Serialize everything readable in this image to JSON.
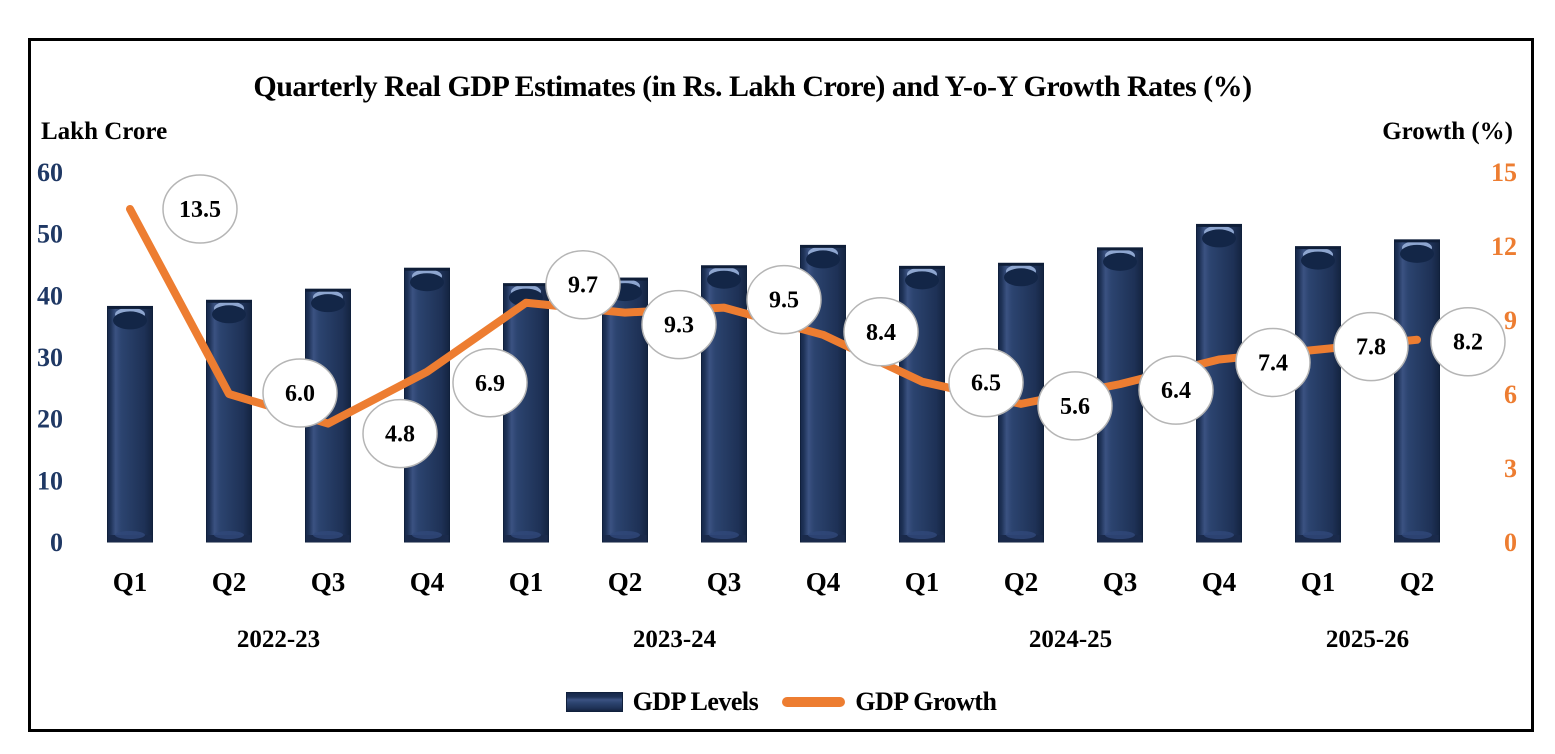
{
  "chart_data": {
    "type": "bar",
    "combo": [
      "bar",
      "line"
    ],
    "title": "Quarterly Real GDP Estimates (in Rs. Lakh Crore) and Y-o-Y Growth Rates (%)",
    "categories": [
      "Q1",
      "Q2",
      "Q3",
      "Q4",
      "Q1",
      "Q2",
      "Q3",
      "Q4",
      "Q1",
      "Q2",
      "Q3",
      "Q4",
      "Q1",
      "Q2"
    ],
    "year_groups": [
      {
        "label": "2022-23",
        "from": 0,
        "to": 3
      },
      {
        "label": "2023-24",
        "from": 4,
        "to": 7
      },
      {
        "label": "2024-25",
        "from": 8,
        "to": 11
      },
      {
        "label": "2025-26",
        "from": 12,
        "to": 13
      }
    ],
    "series": [
      {
        "name": "GDP Levels",
        "type": "bar",
        "axis": "left",
        "color": "#1F3864",
        "values": [
          38.2,
          39.2,
          41.0,
          44.4,
          41.9,
          42.8,
          44.8,
          48.1,
          44.7,
          45.2,
          47.7,
          51.5,
          47.9,
          49.0
        ]
      },
      {
        "name": "GDP Growth",
        "type": "line",
        "axis": "right",
        "color": "#ED7D31",
        "values": [
          13.5,
          6.0,
          4.8,
          6.9,
          9.7,
          9.3,
          9.5,
          8.4,
          6.5,
          5.6,
          6.4,
          7.4,
          7.8,
          8.2
        ],
        "labels": [
          "13.5",
          "6.0",
          "4.8",
          "6.9",
          "9.7",
          "9.3",
          "9.5",
          "8.4",
          "6.5",
          "5.6",
          "6.4",
          "7.4",
          "7.8",
          "8.2"
        ]
      }
    ],
    "left_axis": {
      "label": "Lakh Crore",
      "range": [
        0,
        60
      ],
      "ticks": [
        60,
        50,
        40,
        30,
        20,
        10,
        0
      ],
      "color": "#1F3864"
    },
    "right_axis": {
      "label": "Growth (%)",
      "range": [
        0,
        15
      ],
      "ticks": [
        15,
        12,
        9,
        6,
        3,
        0
      ],
      "color": "#ED7D31"
    },
    "legend_position": "bottom",
    "grid": false,
    "label_bubble": {
      "fill": "#ffffff",
      "stroke": "#b5b5b5"
    },
    "label_offsets": {
      "dx": [
        70,
        71,
        72,
        63,
        57,
        54,
        60,
        58,
        64,
        54,
        56,
        54,
        53,
        51
      ],
      "dy": [
        0,
        -1,
        10,
        11,
        -18,
        12,
        -8,
        -3,
        1,
        2,
        6,
        3,
        -3,
        2
      ]
    }
  }
}
